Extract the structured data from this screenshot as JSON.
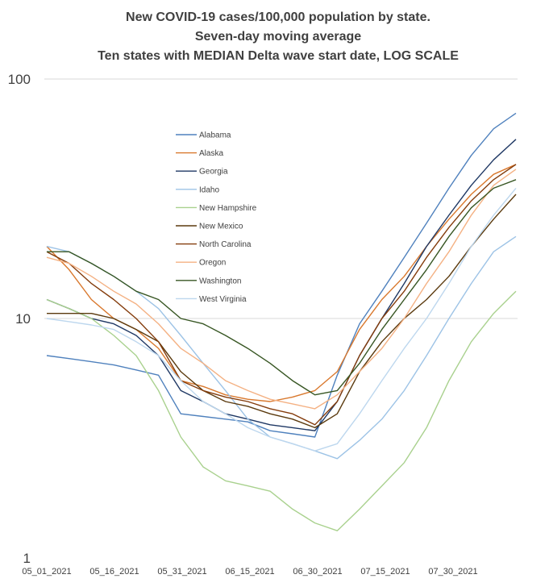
{
  "chart_data": {
    "type": "line",
    "title_lines": [
      "New COVID-19 cases/100,000 population by state.",
      "Seven-day moving average",
      "Ten states with MEDIAN Delta wave start date, LOG SCALE"
    ],
    "xlabel": "",
    "ylabel": "",
    "y_scale": "log",
    "ylim": [
      1,
      100
    ],
    "y_ticks": [
      "1",
      "10",
      "100"
    ],
    "x_ticks": [
      "05_01_2021",
      "05_16_2021",
      "05_31_2021",
      "06_15_2021",
      "06_30_2021",
      "07_15_2021",
      "07_30_2021"
    ],
    "x": [
      "05_01_2021",
      "05_06_2021",
      "05_11_2021",
      "05_16_2021",
      "05_21_2021",
      "05_26_2021",
      "05_31_2021",
      "06_05_2021",
      "06_10_2021",
      "06_15_2021",
      "06_20_2021",
      "06_25_2021",
      "06_30_2021",
      "07_05_2021",
      "07_10_2021",
      "07_15_2021",
      "07_20_2021",
      "07_25_2021",
      "07_30_2021",
      "08_04_2021",
      "08_09_2021",
      "08_14_2021"
    ],
    "grid": "horizontal major gridlines",
    "legend_position": "upper-left inside plot",
    "series": [
      {
        "name": "Alabama",
        "color": "#4f81bd",
        "values": [
          7.0,
          6.8,
          6.6,
          6.4,
          6.1,
          5.8,
          4.0,
          3.9,
          3.8,
          3.7,
          3.4,
          3.3,
          3.2,
          5.8,
          9.5,
          13,
          18,
          25,
          35,
          48,
          62,
          72
        ]
      },
      {
        "name": "Alaska",
        "color": "#d9782d",
        "values": [
          20,
          16,
          12,
          10,
          9,
          7.5,
          5.5,
          5.2,
          4.8,
          4.6,
          4.5,
          4.7,
          5.0,
          6.0,
          9.0,
          12,
          15,
          20,
          26,
          33,
          40,
          44
        ]
      },
      {
        "name": "Georgia",
        "color": "#1f3864",
        "values": [
          12,
          11,
          10,
          9.5,
          8.5,
          7.0,
          5.0,
          4.5,
          4.0,
          3.8,
          3.6,
          3.5,
          3.4,
          4.5,
          7.0,
          10,
          14,
          20,
          27,
          36,
          46,
          56
        ]
      },
      {
        "name": "Idaho",
        "color": "#9dc3e6",
        "values": [
          20,
          19,
          17,
          15,
          13,
          11,
          8.5,
          6.5,
          5.0,
          3.8,
          3.2,
          3.0,
          2.8,
          2.6,
          3.1,
          3.8,
          5.0,
          7.0,
          10,
          14,
          19,
          22
        ]
      },
      {
        "name": "New Hampshire",
        "color": "#a9d18e",
        "values": [
          12,
          11,
          10,
          8.5,
          7.0,
          5.0,
          3.2,
          2.4,
          2.1,
          2.0,
          1.9,
          1.6,
          1.4,
          1.3,
          1.6,
          2.0,
          2.5,
          3.5,
          5.5,
          8.0,
          10.5,
          13
        ]
      },
      {
        "name": "New Mexico",
        "color": "#5b3a0e",
        "values": [
          10.5,
          10.5,
          10.5,
          10,
          9.0,
          8.0,
          6.0,
          5.0,
          4.5,
          4.3,
          4.0,
          3.8,
          3.5,
          4.0,
          6.0,
          8.0,
          10,
          12,
          15,
          20,
          26,
          33
        ]
      },
      {
        "name": "North Carolina",
        "color": "#843c0c",
        "values": [
          19,
          17,
          14,
          12,
          10,
          8.0,
          5.5,
          5.0,
          4.7,
          4.5,
          4.2,
          4.0,
          3.6,
          4.5,
          7.0,
          10,
          13,
          18,
          24,
          31,
          38,
          44
        ]
      },
      {
        "name": "Oregon",
        "color": "#f4b183",
        "values": [
          18,
          17,
          15,
          13,
          11.5,
          9.5,
          7.5,
          6.5,
          5.5,
          5.0,
          4.6,
          4.4,
          4.2,
          4.8,
          6.0,
          7.5,
          10,
          14,
          19,
          27,
          36,
          42
        ]
      },
      {
        "name": "Washington",
        "color": "#375623",
        "values": [
          19,
          19,
          17,
          15,
          13,
          12,
          10,
          9.5,
          8.5,
          7.5,
          6.5,
          5.5,
          4.8,
          5.0,
          6.5,
          9.0,
          12,
          16,
          22,
          29,
          35,
          38
        ]
      },
      {
        "name": "West Virginia",
        "color": "#bdd7ee",
        "values": [
          10,
          9.7,
          9.4,
          9.0,
          8.0,
          7.0,
          5.5,
          4.5,
          4.0,
          3.5,
          3.2,
          3.0,
          2.8,
          3.0,
          4.0,
          5.5,
          7.5,
          10,
          14,
          20,
          27,
          35
        ]
      }
    ]
  }
}
